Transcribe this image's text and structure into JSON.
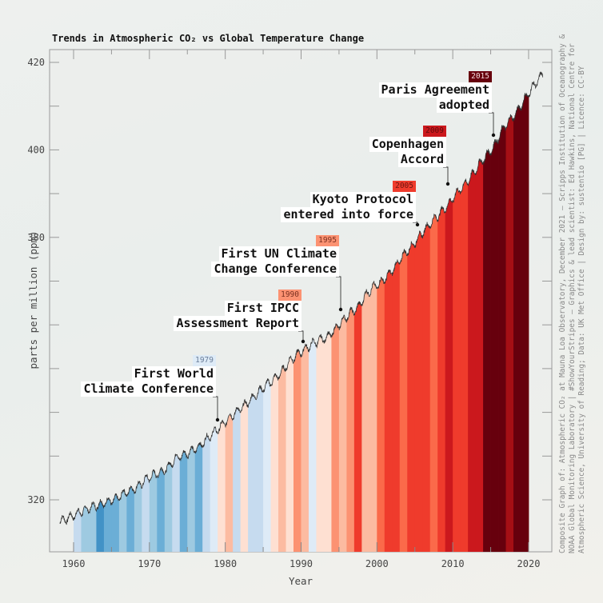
{
  "title": "Trends in Atmospheric CO₂ vs Global Temperature Change",
  "credit": "Composite Graph of: Atmospheric CO₂ at Mauna Loa Observatory, December 2021 – Scripps Institution of Oceanography &\nNOAA Global Monitoring Laboratory | #ShowYourStripes – Graphics & lead scientist: Ed Hawkins, National Centre for\nAtmospheric Science, University of Reading; Data: UK Met Office | Design by: sustentio [PG] | Licence: CC-BY",
  "chart_data": {
    "type": "area",
    "title": "Trends in Atmospheric CO₂ vs Global Temperature Change",
    "xlabel": "Year",
    "ylabel": "parts per million (ppm)",
    "xlim": [
      1956.8,
      2023.1
    ],
    "ylim": [
      308,
      423
    ],
    "x_tick_labels": [
      "1960",
      "1970",
      "1980",
      "1990",
      "2000",
      "2010",
      "2020"
    ],
    "y_tick_labels": [
      "320",
      "380",
      "400",
      "420"
    ],
    "grid": false,
    "co2_annual": {
      "years": [
        1958,
        1959,
        1960,
        1961,
        1962,
        1963,
        1964,
        1965,
        1966,
        1967,
        1968,
        1969,
        1970,
        1971,
        1972,
        1973,
        1974,
        1975,
        1976,
        1977,
        1978,
        1979,
        1980,
        1981,
        1982,
        1983,
        1984,
        1985,
        1986,
        1987,
        1988,
        1989,
        1990,
        1991,
        1992,
        1993,
        1994,
        1995,
        1996,
        1997,
        1998,
        1999,
        2000,
        2001,
        2002,
        2003,
        2004,
        2005,
        2006,
        2007,
        2008,
        2009,
        2010,
        2011,
        2012,
        2013,
        2014,
        2015,
        2016,
        2017,
        2018,
        2019,
        2020,
        2021
      ],
      "ppm": [
        315.3,
        315.98,
        316.91,
        317.64,
        318.45,
        318.99,
        319.62,
        320.04,
        321.37,
        322.18,
        323.05,
        324.62,
        325.68,
        326.32,
        327.46,
        329.68,
        330.19,
        331.13,
        332.03,
        333.84,
        335.41,
        336.84,
        338.76,
        340.12,
        341.48,
        343.15,
        344.87,
        346.35,
        347.61,
        349.31,
        351.69,
        353.2,
        354.45,
        355.7,
        356.54,
        357.21,
        358.96,
        360.97,
        362.74,
        363.88,
        366.84,
        368.54,
        369.71,
        371.32,
        373.45,
        375.98,
        377.7,
        379.98,
        382.09,
        384.02,
        385.83,
        387.64,
        390.1,
        391.85,
        394.06,
        396.74,
        398.81,
        401.01,
        404.41,
        406.76,
        408.72,
        411.66,
        414.24,
        416.45
      ]
    },
    "warming_stripes": {
      "start_year": 1960,
      "colors": [
        "#c6dbef",
        "#9ecae1",
        "#9ecae1",
        "#4292c6",
        "#6baed6",
        "#6baed6",
        "#9ecae1",
        "#6baed6",
        "#9ecae1",
        "#c6dbef",
        "#9ecae1",
        "#6baed6",
        "#9ecae1",
        "#c6dbef",
        "#6baed6",
        "#9ecae1",
        "#6baed6",
        "#c6dbef",
        "#deebf7",
        "#fee0d2",
        "#fcbba1",
        "#c6dbef",
        "#fee0d2",
        "#c6dbef",
        "#c6dbef",
        "#deebf7",
        "#fee0d2",
        "#fcbba1",
        "#fee0d2",
        "#fc9272",
        "#fcbba1",
        "#deebf7",
        "#fee0d2",
        "#fee0d2",
        "#fc9272",
        "#fcbba1",
        "#fc9272",
        "#ef3b2c",
        "#fcbba1",
        "#fcbba1",
        "#fb6a4a",
        "#ef3b2c",
        "#ef3b2c",
        "#fb6a4a",
        "#ef3b2c",
        "#ef3b2c",
        "#ef3b2c",
        "#fb6a4a",
        "#ef3b2c",
        "#cb181d",
        "#ef3b2c",
        "#ef3b2c",
        "#cb181d",
        "#cb181d",
        "#67000d",
        "#67000d",
        "#67000d",
        "#a50f15",
        "#67000d",
        "#67000d"
      ]
    },
    "annotations": [
      {
        "year": "1979",
        "lines": [
          "First World",
          "Climate Conference"
        ],
        "badge_bg": "#deebf7",
        "badge_fg": "#6a7d99"
      },
      {
        "year": "1990",
        "lines": [
          "First IPCC",
          "Assessment Report"
        ],
        "badge_bg": "#fc9272",
        "badge_fg": "#7a3020"
      },
      {
        "year": "1995",
        "lines": [
          "First UN Climate",
          "Change Conference"
        ],
        "badge_bg": "#fc9272",
        "badge_fg": "#7a3020"
      },
      {
        "year": "2005",
        "lines": [
          "Kyoto Protocol",
          "entered into force"
        ],
        "badge_bg": "#ef3b2c",
        "badge_fg": "#6e1510"
      },
      {
        "year": "2009",
        "lines": [
          "Copenhagen",
          "Accord"
        ],
        "badge_bg": "#cb181d",
        "badge_fg": "#5e0a0c"
      },
      {
        "year": "2015",
        "lines": [
          "Paris Agreement",
          "adopted"
        ],
        "badge_bg": "#67000d",
        "badge_fg": "#f4dede"
      }
    ]
  }
}
